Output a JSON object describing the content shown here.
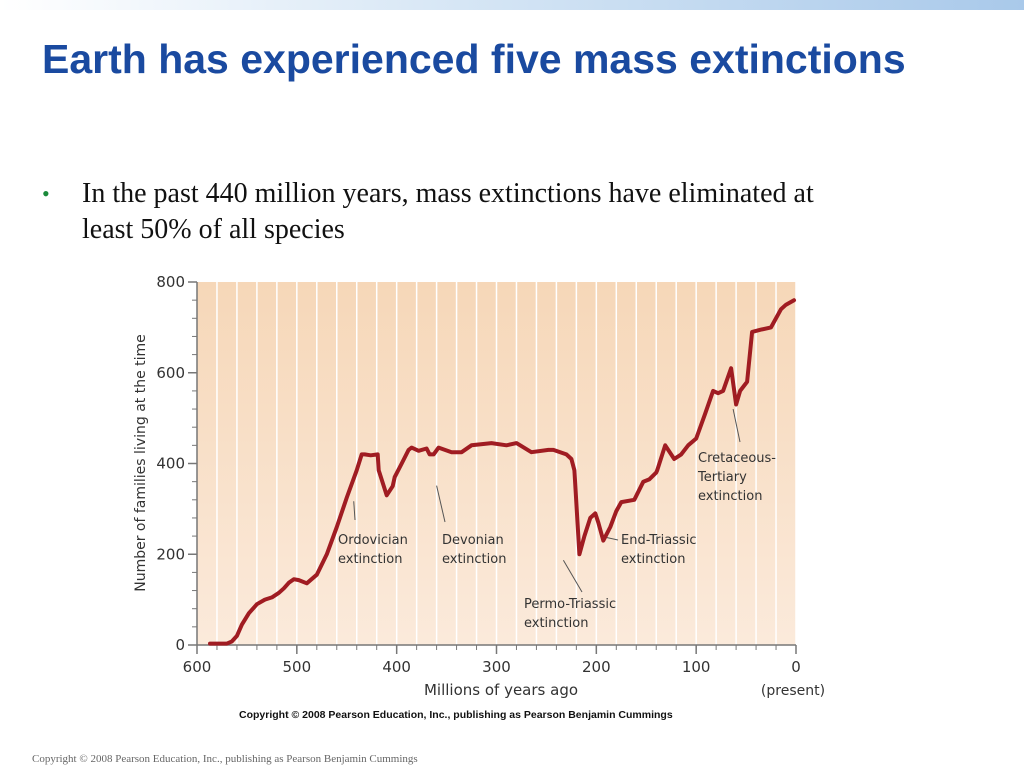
{
  "slide": {
    "title": "Earth has experienced five mass extinctions",
    "bullet": "In the past 440 million years, mass extinctions have eliminated at least 50% of all species",
    "bullet_marker": "•",
    "chart_copyright": "Copyright © 2008 Pearson Education, Inc., publishing as Pearson Benjamin Cummings",
    "footer": "Copyright © 2008 Pearson Education, Inc., publishing as Pearson Benjamin Cummings"
  },
  "colors": {
    "title": "#1a4aa0",
    "bullet": "#1a8a3a",
    "line": "#a01c22",
    "plot_bg_top": "#f6d7b8",
    "plot_bg_bottom": "#fbeadb"
  },
  "chart_data": {
    "type": "line",
    "title": "",
    "xlabel": "Millions of years ago",
    "ylabel": "Number of families living at the time",
    "xlim": [
      600,
      0
    ],
    "ylim": [
      0,
      800
    ],
    "x_ticks": [
      600,
      500,
      400,
      300,
      200,
      100,
      0
    ],
    "x_tick_labels": [
      "600",
      "500",
      "400",
      "300",
      "200",
      "100",
      "0"
    ],
    "x_present_label": "(present)",
    "y_ticks": [
      0,
      200,
      400,
      600,
      800
    ],
    "grid": "vertical",
    "series": [
      {
        "x": [
          587,
          570,
          565,
          560,
          555,
          548,
          540,
          532,
          525,
          518,
          513,
          508,
          503,
          498,
          490,
          480,
          470,
          460,
          450,
          440,
          435,
          432,
          426,
          419,
          418,
          410,
          404,
          402,
          395,
          388,
          385,
          378,
          370,
          367,
          363,
          358,
          345,
          335,
          325,
          305,
          290,
          280,
          265,
          248,
          243,
          230,
          225,
          222,
          217,
          212,
          206,
          201,
          198,
          193,
          186,
          180,
          175,
          162,
          153,
          147,
          140,
          139,
          131,
          122,
          115,
          108,
          100,
          91,
          83,
          78,
          73,
          65,
          60,
          56,
          49,
          44,
          35,
          25,
          15,
          10,
          2
        ],
        "y": [
          3,
          3,
          8,
          20,
          45,
          70,
          90,
          100,
          105,
          115,
          125,
          137,
          145,
          143,
          136,
          155,
          200,
          260,
          325,
          385,
          420,
          420,
          418,
          420,
          385,
          330,
          350,
          370,
          400,
          430,
          435,
          428,
          433,
          420,
          420,
          435,
          425,
          425,
          440,
          445,
          440,
          445,
          425,
          430,
          430,
          420,
          410,
          385,
          200,
          240,
          280,
          290,
          270,
          230,
          260,
          295,
          315,
          320,
          360,
          365,
          380,
          385,
          440,
          410,
          420,
          440,
          455,
          510,
          560,
          555,
          560,
          610,
          530,
          560,
          580,
          690,
          695,
          700,
          740,
          750,
          760
        ]
      }
    ],
    "annotations": [
      {
        "label": "Ordovician extinction",
        "line1": "Ordovician",
        "line2": "extinction",
        "x": 440,
        "y": 330
      },
      {
        "label": "Devonian extinction",
        "line1": "Devonian",
        "line2": "extinction",
        "x": 360,
        "y": 360
      },
      {
        "label": "Permo-Triassic extinction",
        "line1": "Permo-Triassic",
        "line2": "extinction",
        "x": 245,
        "y": 200
      },
      {
        "label": "End-Triassic extinction",
        "line1": "End-Triassic",
        "line2": "extinction",
        "x": 200,
        "y": 235
      },
      {
        "label": "Cretaceous-Tertiary extinction",
        "line1": "Cretaceous-",
        "line2": "Tertiary",
        "line3": "extinction",
        "x": 65,
        "y": 530
      }
    ]
  }
}
